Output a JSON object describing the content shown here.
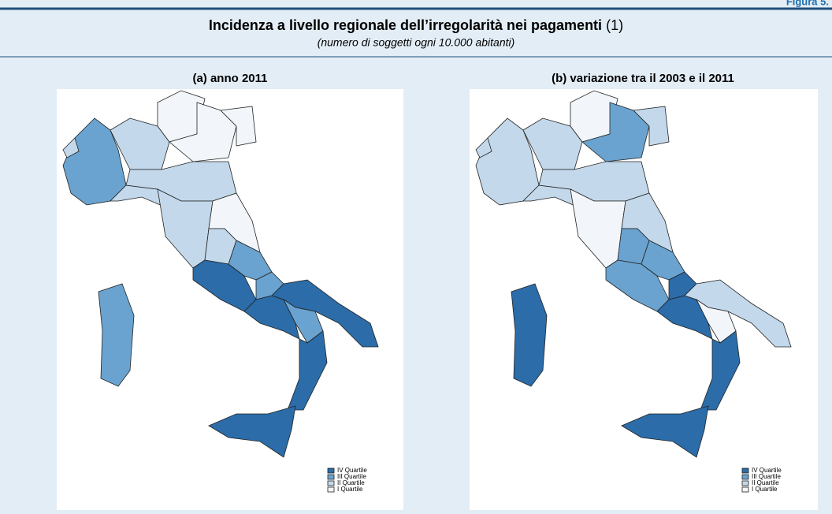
{
  "figure_label": "Figura 5.",
  "header": {
    "title": "Incidenza a livello regionale dell’irregolarità nei pagamenti",
    "title_note": "(1)",
    "subtitle": "(numero di soggetti ogni 10.000 abitanti)"
  },
  "panels": [
    {
      "title": "(a) anno 2011",
      "legend": [
        "IV Quartile",
        "III Quartile",
        "II Quartile",
        "I Quartile"
      ]
    },
    {
      "title": "(b) variazione tra il 2003 e il 2011",
      "legend": [
        "IV Quartile",
        "III Quartile",
        "II Quartile",
        "I Quartile"
      ]
    }
  ]
}
